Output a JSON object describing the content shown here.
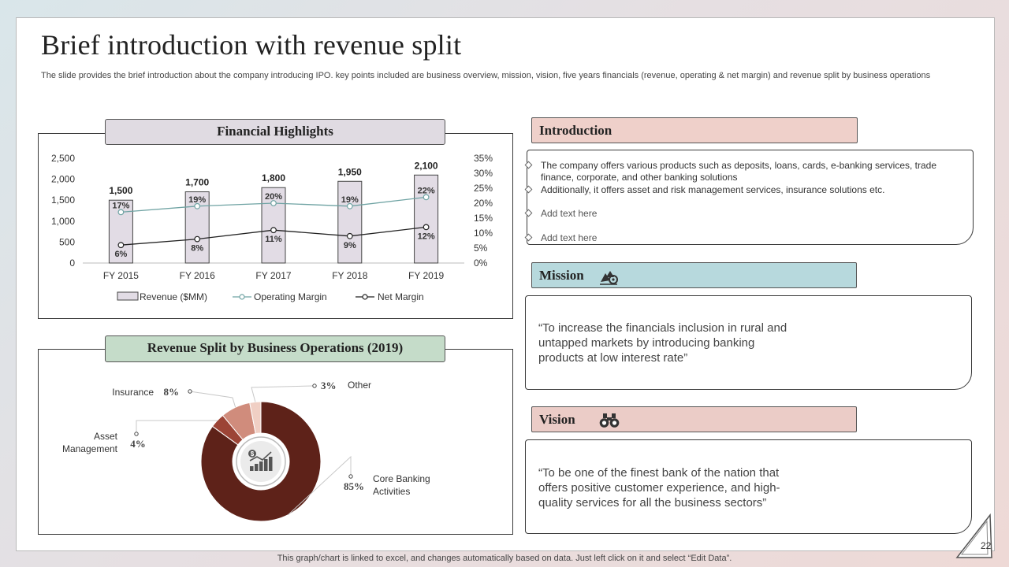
{
  "slide": {
    "title": "Brief introduction with revenue split",
    "subtitle": "The slide provides the brief introduction about the company introducing IPO. key points included are business overview, mission, vision, five years financials (revenue, operating & net margin) and revenue split by business operations",
    "footer_note": "This graph/chart is linked to excel, and changes automatically based on data. Just left click on it and select “Edit Data”.",
    "page_number": "22"
  },
  "financial_panel": {
    "title": "Financial Highlights"
  },
  "revenue_panel": {
    "title": "Revenue Split by Business Operations (2019)"
  },
  "introduction": {
    "heading": "Introduction",
    "items": [
      "The company offers various products such as deposits, loans, cards, e-banking services, trade finance, corporate, and other banking solutions",
      "Additionally, it offers asset and risk management services, insurance solutions etc.",
      "Add text here",
      "Add text here"
    ]
  },
  "mission": {
    "heading": "Mission",
    "icon": "mission-target-icon",
    "quote_lines": [
      "“To increase the financials inclusion in rural and",
      "untapped markets by introducing banking",
      "products at low interest rate”"
    ]
  },
  "vision": {
    "heading": "Vision",
    "icon": "binoculars-icon",
    "quote_lines": [
      "“To be one of the finest bank of the nation that",
      "offers positive customer experience, and high-",
      "quality services for all the business sectors”"
    ]
  },
  "colors": {
    "intro_header": "#efd0ca",
    "mission_header": "#b7d9dd",
    "vision_header": "#ebccc7",
    "financial_title_bg": "#e0dbe2",
    "revenue_title_bg": "#c5dcc9",
    "bar_fill": "#e2dce5",
    "operating_line": "#6fa3a3",
    "net_line": "#222222",
    "donut_main": "#5e2219",
    "donut_asset": "#9c4436",
    "donut_insurance": "#d08c7c",
    "donut_other": "#f0cfc4"
  },
  "chart_data": [
    {
      "type": "bar",
      "title": "Financial Highlights",
      "categories": [
        "FY 2015",
        "FY 2016",
        "FY 2017",
        "FY 2018",
        "FY 2019"
      ],
      "series": [
        {
          "name": "Revenue ($MM)",
          "type": "bar",
          "axis": "left",
          "values": [
            1500,
            1700,
            1800,
            1950,
            2100
          ],
          "labels": [
            "1,500",
            "1,700",
            "1,800",
            "1,950",
            "2,100"
          ]
        },
        {
          "name": "Operating Margin",
          "type": "line",
          "axis": "right",
          "values": [
            17,
            19,
            20,
            19,
            22
          ],
          "labels": [
            "17%",
            "19%",
            "20%",
            "19%",
            "22%"
          ]
        },
        {
          "name": "Net Margin",
          "type": "line",
          "axis": "right",
          "values": [
            6,
            8,
            11,
            9,
            12
          ],
          "labels": [
            "6%",
            "8%",
            "11%",
            "9%",
            "12%"
          ]
        }
      ],
      "y_left": {
        "range": [
          0,
          2500
        ],
        "ticks": [
          0,
          500,
          1000,
          1500,
          2000,
          2500
        ],
        "tick_labels": [
          "0",
          "500",
          "1,000",
          "1,500",
          "2,000",
          "2,500"
        ]
      },
      "y_right": {
        "range": [
          0,
          35
        ],
        "ticks": [
          0,
          5,
          10,
          15,
          20,
          25,
          30,
          35
        ],
        "tick_labels": [
          "0%",
          "5%",
          "10%",
          "15%",
          "20%",
          "25%",
          "30%",
          "35%"
        ]
      },
      "grid": false,
      "legend": "bottom"
    },
    {
      "type": "pie",
      "title": "Revenue Split by Business Operations (2019)",
      "style": "donut",
      "slices": [
        {
          "name": "Core Banking Activities",
          "lines": [
            "Core Banking",
            "Activities"
          ],
          "value": 85,
          "label": "85%"
        },
        {
          "name": "Asset Management",
          "lines": [
            "Asset",
            "Management"
          ],
          "value": 4,
          "label": "4%"
        },
        {
          "name": "Insurance",
          "lines": [
            "Insurance"
          ],
          "value": 8,
          "label": "8%"
        },
        {
          "name": "Other",
          "lines": [
            "Other"
          ],
          "value": 3,
          "label": "3%"
        }
      ]
    }
  ]
}
